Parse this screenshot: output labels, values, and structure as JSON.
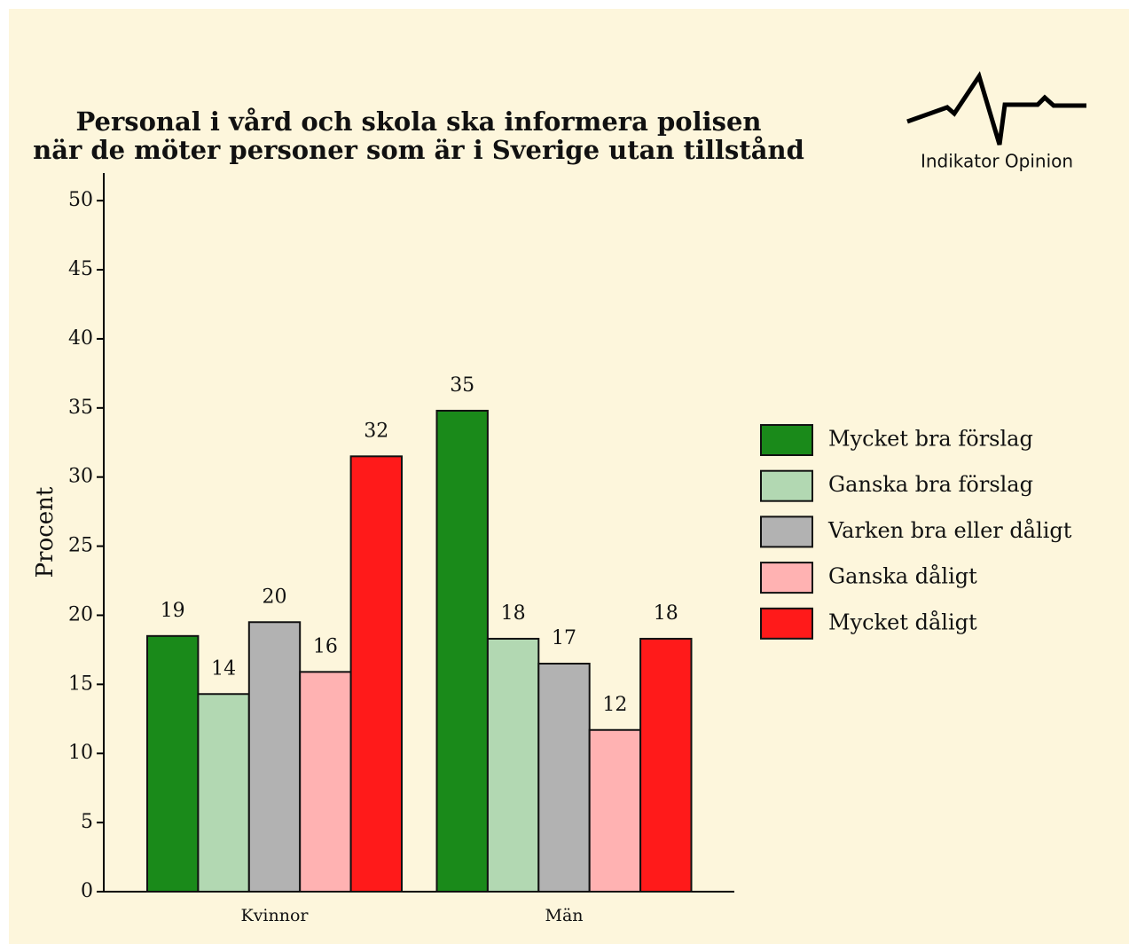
{
  "chart_data": {
    "type": "bar",
    "title": "Personal i vård och skola ska informera polisen",
    "subtitle": "när de möter personer som är i Sverige utan tillstånd",
    "brand": "Indikator Opinion",
    "ylabel": "Procent",
    "categories": [
      "Kvinnor",
      "Män"
    ],
    "series": [
      {
        "name": "Mycket bra förslag",
        "color": "#1a8a1a",
        "values": [
          18.5,
          34.8
        ],
        "value_labels": [
          "19",
          "35"
        ]
      },
      {
        "name": "Ganska bra förslag",
        "color": "#b2d8b2",
        "values": [
          14.3,
          18.3
        ],
        "value_labels": [
          "14",
          "18"
        ]
      },
      {
        "name": "Varken bra eller dåligt",
        "color": "#b2b2b2",
        "values": [
          19.5,
          16.5
        ],
        "value_labels": [
          "20",
          "17"
        ]
      },
      {
        "name": "Ganska dåligt",
        "color": "#ffb2b2",
        "values": [
          15.9,
          11.7
        ],
        "value_labels": [
          "16",
          "12"
        ]
      },
      {
        "name": "Mycket dåligt",
        "color": "#ff1a1a",
        "values": [
          31.5,
          18.3
        ],
        "value_labels": [
          "32",
          "18"
        ]
      }
    ],
    "ylim": [
      0,
      52
    ],
    "yticks": [
      0,
      5,
      10,
      15,
      20,
      25,
      30,
      35,
      40,
      45,
      50
    ]
  }
}
